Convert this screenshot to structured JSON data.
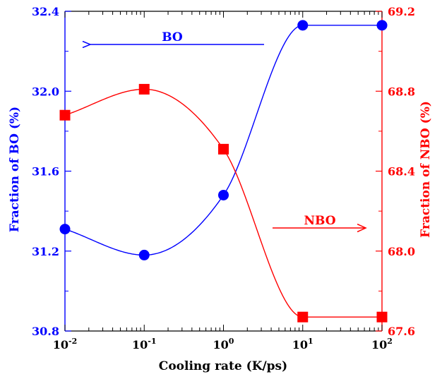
{
  "chart_data": {
    "type": "line",
    "xlabel": "Cooling rate (K/ps)",
    "ylabel_left": "Fraction of BO (%)",
    "ylabel_right": "Fraction of NBO (%)",
    "x_scale": "log",
    "xlim": [
      0.01,
      100
    ],
    "ylim_left": [
      30.8,
      32.4
    ],
    "ylim_right": [
      67.6,
      69.2
    ],
    "x": [
      0.01,
      0.1,
      1,
      10,
      100
    ],
    "x_tick_labels": [
      {
        "base": "10",
        "exp": "-2"
      },
      {
        "base": "10",
        "exp": "-1"
      },
      {
        "base": "10",
        "exp": "0"
      },
      {
        "base": "10",
        "exp": "1"
      },
      {
        "base": "10",
        "exp": "2"
      }
    ],
    "y_ticks_left": [
      "30.8",
      "31.2",
      "31.6",
      "32.0",
      "32.4"
    ],
    "y_ticks_right": [
      "67.6",
      "68.0",
      "68.4",
      "68.8",
      "69.2"
    ],
    "series": [
      {
        "name": "BO",
        "axis": "left",
        "color": "#0000ff",
        "marker": "circle",
        "values": [
          31.31,
          31.18,
          31.48,
          32.33,
          32.33
        ]
      },
      {
        "name": "NBO",
        "axis": "right",
        "color": "#ff0000",
        "marker": "square",
        "values": [
          68.68,
          68.81,
          68.51,
          67.67,
          67.67
        ]
      }
    ],
    "annotations": [
      {
        "text": "BO",
        "arrow": "left",
        "color": "#0000ff"
      },
      {
        "text": "NBO",
        "arrow": "right",
        "color": "#ff0000"
      }
    ],
    "grid": false
  }
}
